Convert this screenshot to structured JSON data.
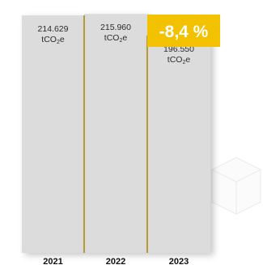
{
  "chart_data": {
    "type": "bar",
    "categories": [
      "2021",
      "2022",
      "2023"
    ],
    "values": [
      214629,
      215960,
      196550
    ],
    "value_labels": [
      "214.629",
      "215.960",
      "196.550"
    ],
    "unit_label": "tCO₂e",
    "ylim": [
      0,
      230000
    ],
    "grid": false,
    "badge": {
      "text": "-8,4 %",
      "color": "#f2c200"
    },
    "colors": {
      "bar": "#dcdcdc",
      "divider": "#a88700",
      "text": "#2b2b2b"
    }
  }
}
